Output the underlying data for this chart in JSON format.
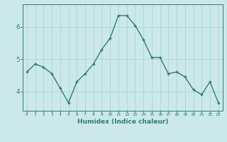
{
  "xlabel": "Humidex (Indice chaleur)",
  "ylabel": "",
  "x": [
    0,
    1,
    2,
    3,
    4,
    5,
    6,
    7,
    8,
    9,
    10,
    11,
    12,
    13,
    14,
    15,
    16,
    17,
    18,
    19,
    20,
    21,
    22,
    23
  ],
  "y": [
    4.6,
    4.85,
    4.75,
    4.55,
    4.1,
    3.65,
    4.3,
    4.55,
    4.85,
    5.3,
    5.65,
    6.35,
    6.35,
    6.05,
    5.6,
    5.05,
    5.05,
    4.55,
    4.6,
    4.45,
    4.05,
    3.9,
    4.3,
    3.65
  ],
  "line_color": "#2e7d6e",
  "bg_color": "#cce9e9",
  "grid_color": "#aed4d4",
  "tick_color": "#2e7d6e",
  "label_color": "#2e7d6e",
  "ylim": [
    3.4,
    6.7
  ],
  "yticks": [
    4,
    5,
    6
  ],
  "figsize": [
    3.2,
    2.0
  ],
  "dpi": 100
}
